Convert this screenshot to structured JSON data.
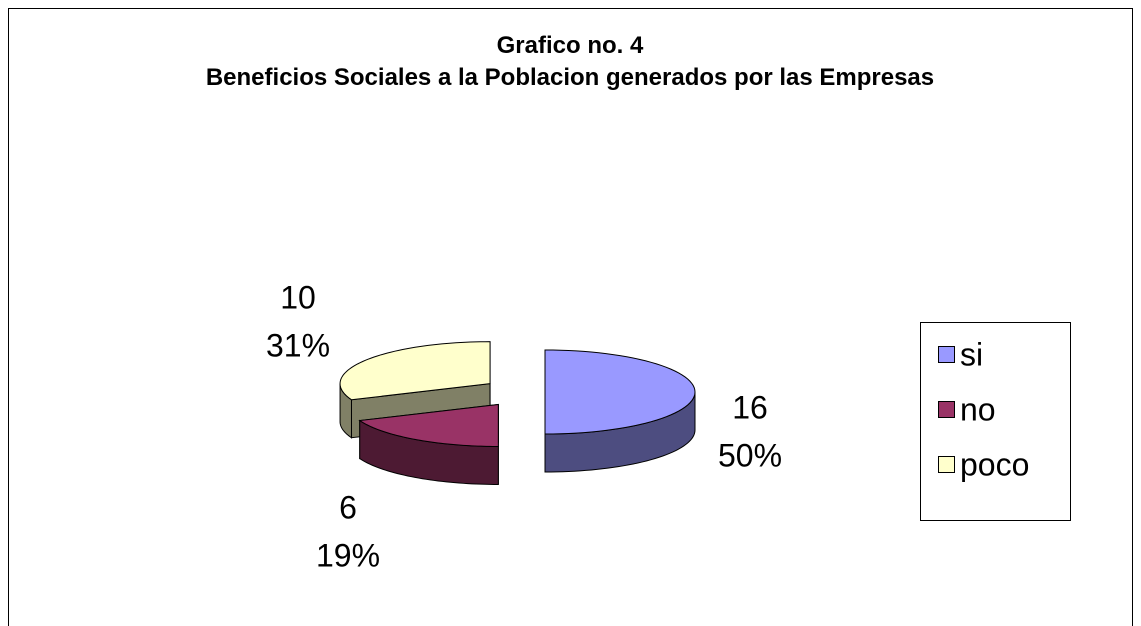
{
  "chart_data": {
    "type": "pie",
    "title": "Grafico no. 4",
    "subtitle": "Beneficios Sociales a la Poblacion generados por las Empresas",
    "categories": [
      "si",
      "no",
      "poco"
    ],
    "values": [
      16,
      6,
      10
    ],
    "percent_labels": [
      "50%",
      "19%",
      "31%"
    ],
    "colors": [
      "#9999ff",
      "#993366",
      "#ffffcc"
    ],
    "legend": "right"
  }
}
